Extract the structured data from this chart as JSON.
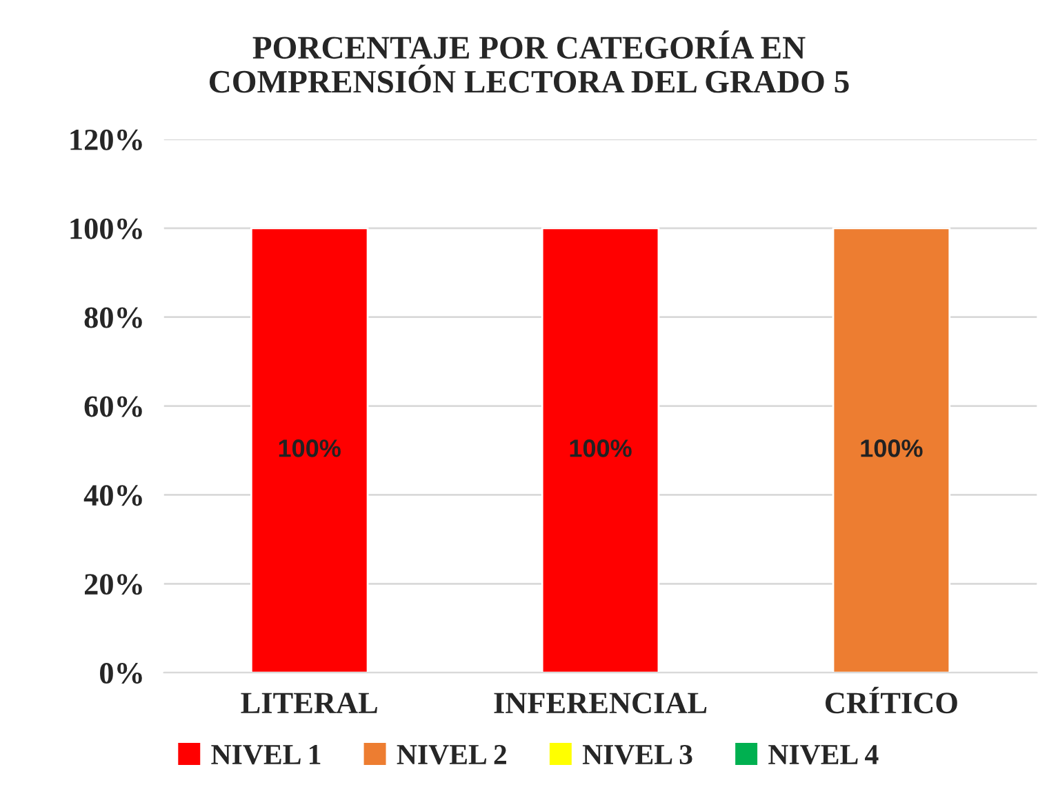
{
  "chart_data": {
    "type": "bar",
    "stacked": true,
    "title": "PORCENTAJE POR CATEGORÍA EN\nCOMPRENSIÓN LECTORA DEL GRADO 5",
    "categories": [
      "LITERAL",
      "INFERENCIAL",
      "CRÍTICO"
    ],
    "series": [
      {
        "name": "NIVEL 1",
        "color": "#ff0000",
        "values": [
          100,
          100,
          null
        ],
        "value_labels": [
          "100%",
          "100%",
          null
        ]
      },
      {
        "name": "NIVEL 2",
        "color": "#ed7d31",
        "values": [
          null,
          null,
          100
        ],
        "value_labels": [
          null,
          null,
          "100%"
        ]
      },
      {
        "name": "NIVEL 3",
        "color": "#ffff00",
        "values": [
          null,
          null,
          null
        ]
      },
      {
        "name": "NIVEL 4",
        "color": "#00b050",
        "values": [
          null,
          null,
          null
        ]
      }
    ],
    "ylim": [
      0,
      120
    ],
    "yticks": [
      {
        "value": 0,
        "label": "0%"
      },
      {
        "value": 20,
        "label": "20%"
      },
      {
        "value": 40,
        "label": "40%"
      },
      {
        "value": 60,
        "label": "60%"
      },
      {
        "value": 80,
        "label": "80%"
      },
      {
        "value": 100,
        "label": "100%"
      },
      {
        "value": 120,
        "label": "120%"
      }
    ],
    "grid": "y",
    "legend": "bottom"
  }
}
